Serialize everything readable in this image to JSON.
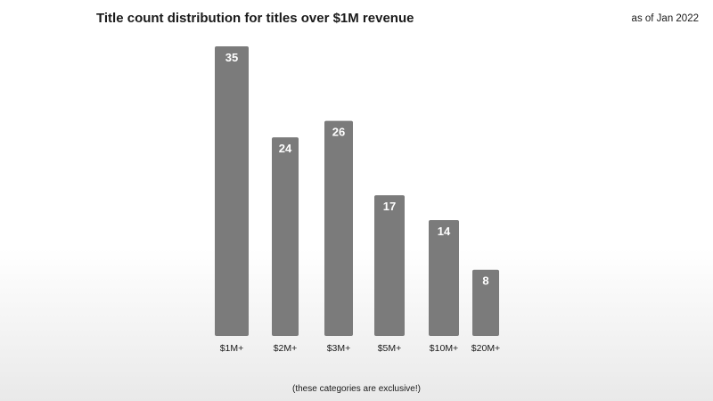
{
  "header": {
    "as_of": "as of Jan 2022"
  },
  "footnote": "(these categories are exclusive!)",
  "chart_data": {
    "type": "bar",
    "title": "Title count distribution for titles over $1M revenue",
    "categories": [
      "$1M+",
      "$2M+",
      "$3M+",
      "$5M+",
      "$10M+",
      "$20M+"
    ],
    "values": [
      35,
      24,
      26,
      17,
      14,
      8
    ],
    "xlabel": "",
    "ylabel": "",
    "ylim": [
      0,
      35
    ],
    "grid": false,
    "legend": "none",
    "bar_color": "#7b7b7b",
    "label_color": "#ffffff"
  }
}
